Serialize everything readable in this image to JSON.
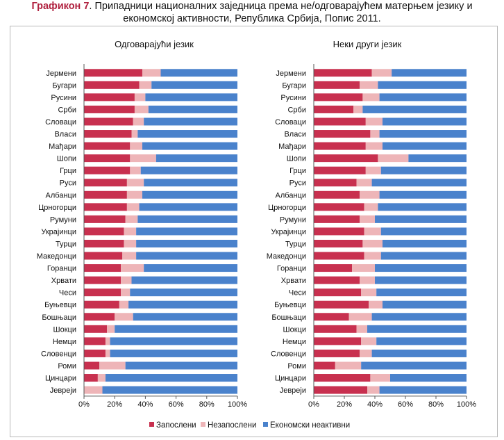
{
  "figure": {
    "label": "Графикон 7",
    "title_line1": ". Припадници националних заједница према не/одговарајућем матерњем језику и",
    "title_line2": "економској активности, Република Србија, Попис 2011."
  },
  "chart_data": {
    "type": "bar",
    "orientation": "horizontal",
    "stacked": true,
    "xlim": [
      0,
      100
    ],
    "xticks": [
      "0%",
      "20%",
      "40%",
      "60%",
      "80%",
      "100%"
    ],
    "grid": false,
    "legend_position": "bottom",
    "colors": {
      "employed": "#c8304f",
      "unemployed": "#eeb5b8",
      "inactive": "#4a82cc"
    },
    "legend": [
      "Запослени",
      "Незапослени",
      "Економски неактивни"
    ],
    "panels": [
      {
        "title": "Одговарајући језик",
        "categories": [
          "Јермени",
          "Бугари",
          "Русини",
          "Срби",
          "Словаци",
          "Власи",
          "Мађари",
          "Шопи",
          "Грци",
          "Руси",
          "Албанци",
          "Црногорци",
          "Румуни",
          "Украјинци",
          "Турци",
          "Македонци",
          "Горанци",
          "Хрвати",
          "Чеси",
          "Буњевци",
          "Бошњаци",
          "Шокци",
          "Немци",
          "Словенци",
          "Роми",
          "Цинцари",
          "Јевреји"
        ],
        "series": [
          {
            "name": "Запослени",
            "values": [
              38,
              36,
              33,
              33,
              32,
              31,
              30,
              30,
              30,
              28,
              28,
              28,
              27,
              26,
              26,
              25,
              24,
              24,
              24,
              23,
              20,
              15,
              14,
              14,
              10,
              9,
              0
            ]
          },
          {
            "name": "Незапослени",
            "values": [
              12,
              8,
              7,
              9,
              7,
              4,
              8,
              17,
              7,
              11,
              10,
              8,
              8,
              8,
              8,
              9,
              15,
              7,
              6,
              6,
              12,
              5,
              3,
              3,
              17,
              5,
              12
            ]
          },
          {
            "name": "Економски неактивни",
            "values": [
              50,
              56,
              60,
              58,
              61,
              65,
              62,
              53,
              63,
              61,
              62,
              64,
              65,
              66,
              66,
              66,
              61,
              69,
              70,
              71,
              68,
              80,
              83,
              83,
              73,
              86,
              88
            ]
          }
        ]
      },
      {
        "title": "Неки други језик",
        "categories": [
          "Јермени",
          "Бугари",
          "Русини",
          "Срби",
          "Словаци",
          "Власи",
          "Мађари",
          "Шопи",
          "Грци",
          "Руси",
          "Албанци",
          "Црногорци",
          "Румуни",
          "Украјинци",
          "Турци",
          "Македонци",
          "Горанци",
          "Хрвати",
          "Чеси",
          "Буњевци",
          "Бошњаци",
          "Шокци",
          "Немци",
          "Словенци",
          "Роми",
          "Цинцари",
          "Јевреји"
        ],
        "series": [
          {
            "name": "Запослени",
            "values": [
              38,
              30,
              32,
              26,
              34,
              37,
              34,
              42,
              34,
              28,
              30,
              33,
              30,
              33,
              32,
              33,
              25,
              30,
              31,
              36,
              23,
              28,
              31,
              30,
              14,
              37,
              35
            ]
          },
          {
            "name": "Незапослени",
            "values": [
              13,
              12,
              11,
              6,
              11,
              6,
              11,
              20,
              10,
              10,
              13,
              9,
              10,
              11,
              13,
              11,
              15,
              10,
              10,
              9,
              15,
              7,
              10,
              8,
              17,
              13,
              8
            ]
          },
          {
            "name": "Економски неактивни",
            "values": [
              49,
              58,
              57,
              68,
              55,
              57,
              55,
              38,
              56,
              62,
              57,
              58,
              60,
              56,
              55,
              56,
              60,
              60,
              59,
              55,
              62,
              65,
              59,
              62,
              69,
              50,
              57
            ]
          }
        ]
      }
    ]
  }
}
